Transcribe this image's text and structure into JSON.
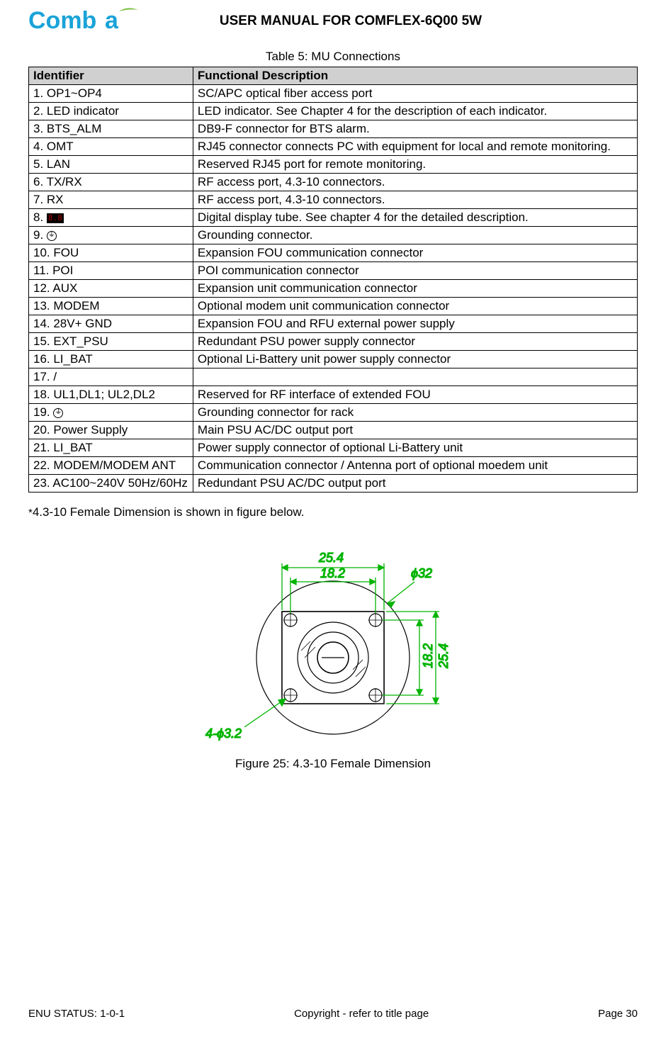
{
  "header": {
    "logo_text": "Comba",
    "logo_colors": {
      "primary": "#1aa3d8",
      "accent": "#7bc043"
    },
    "doc_title": "USER MANUAL FOR COMFLEX-6Q00 5W"
  },
  "table": {
    "caption": "Table 5: MU Connections",
    "header_bg": "#d0d0d0",
    "border_color": "#000000",
    "columns": [
      "Identifier",
      "Functional Description"
    ],
    "rows": [
      {
        "id": "1. OP1~OP4",
        "desc": "SC/APC optical fiber access port"
      },
      {
        "id": "2. LED indicator",
        "desc": "LED indicator. See Chapter 4 for the description of each indicator."
      },
      {
        "id": "3. BTS_ALM",
        "desc": "DB9-F connector for BTS alarm."
      },
      {
        "id": "4. OMT",
        "desc": "RJ45 connector connects PC with equipment for local and remote monitoring."
      },
      {
        "id": "5. LAN",
        "desc": "Reserved RJ45 port for remote monitoring."
      },
      {
        "id": "6. TX/RX",
        "desc": "RF access port, 4.3-10 connectors."
      },
      {
        "id": "7. RX",
        "desc": "RF access port, 4.3-10 connectors."
      },
      {
        "id_prefix": "8. ",
        "icon": "digital",
        "desc": "Digital display tube. See chapter 4 for the detailed description."
      },
      {
        "id_prefix": "9. ",
        "icon": "ground",
        "desc": "Grounding connector."
      },
      {
        "id": "10. FOU",
        "desc": "Expansion FOU communication connector"
      },
      {
        "id": "11. POI",
        "desc": "POI  communication connector"
      },
      {
        "id": "12. AUX",
        "desc": "Expansion unit communication connector"
      },
      {
        "id": "13. MODEM",
        "desc": "Optional modem unit communication connector"
      },
      {
        "id": "14. 28V+ GND",
        "desc": "Expansion FOU and RFU external power supply"
      },
      {
        "id": "15. EXT_PSU",
        "desc": "Redundant PSU power supply connector"
      },
      {
        "id": "16. LI_BAT",
        "desc": "Optional Li-Battery unit power supply connector"
      },
      {
        "id": "17. /",
        "desc": ""
      },
      {
        "id": "18. UL1,DL1; UL2,DL2",
        "desc": "Reserved for RF interface of extended FOU"
      },
      {
        "id_prefix": "19. ",
        "icon": "ground",
        "desc": "Grounding connector for rack"
      },
      {
        "id": "20. Power Supply",
        "desc": "Main PSU AC/DC output port"
      },
      {
        "id": "21. LI_BAT",
        "desc": "Power supply connector of  optional Li-Battery unit"
      },
      {
        "id": "22. MODEM/MODEM ANT",
        "desc": "Communication connector /  Antenna port of optional moedem unit"
      },
      {
        "id": "23. AC100~240V 50Hz/60Hz",
        "desc": "Redundant PSU AC/DC output port"
      }
    ]
  },
  "note_text": "4.3-10 Female Dimension is shown in figure below.",
  "note_asterisk": "*",
  "figure": {
    "caption": "Figure 25: 4.3-10 Female Dimension",
    "dims": {
      "outer_w": 25.4,
      "inner_w": 18.2,
      "outer_h": 25.4,
      "inner_h": 18.2,
      "circle_d": 32,
      "hole_d": 3.2,
      "hole_count": 4
    },
    "label_25_4_top": "25.4",
    "label_18_2_top": "18.2",
    "label_18_2_right": "18.2",
    "label_25_4_right": "25.4",
    "label_phi32": "ϕ32",
    "label_holes": "4-ϕ3.2",
    "dim_color": "#00b400",
    "line_color": "#000000"
  },
  "footer": {
    "left": "ENU STATUS: 1-0-1",
    "center": "Copyright - refer to title page",
    "right": "Page 30"
  }
}
